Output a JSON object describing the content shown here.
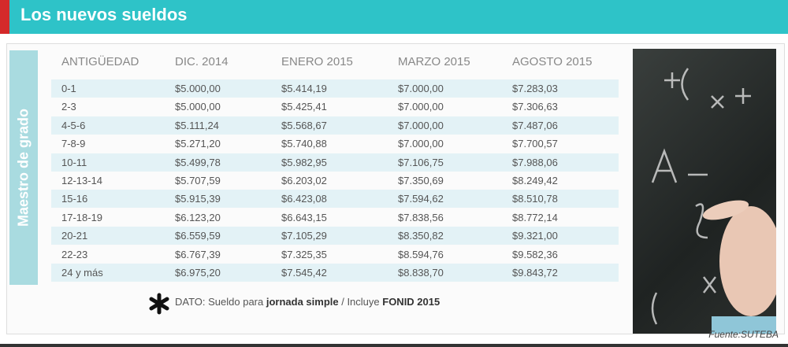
{
  "header": {
    "title": "Los nuevos sueldos"
  },
  "side_label": "Maestro de grado",
  "table": {
    "columns": [
      "ANTIGÜEDAD",
      "DIC. 2014",
      "ENERO 2015",
      "MARZO 2015",
      "AGOSTO 2015"
    ],
    "rows": [
      [
        "0-1",
        "$5.000,00",
        "$5.414,19",
        "$7.000,00",
        "$7.283,03"
      ],
      [
        "2-3",
        "$5.000,00",
        "$5.425,41",
        "$7.000,00",
        "$7.306,63"
      ],
      [
        "4-5-6",
        "$5.111,24",
        "$5.568,67",
        "$7.000,00",
        "$7.487,06"
      ],
      [
        "7-8-9",
        "$5.271,20",
        "$5.740,88",
        "$7.000,00",
        "$7.700,57"
      ],
      [
        "10-11",
        "$5.499,78",
        "$5.982,95",
        "$7.106,75",
        "$7.988,06"
      ],
      [
        "12-13-14",
        "$5.707,59",
        "$6.203,02",
        "$7.350,69",
        "$8.249,42"
      ],
      [
        "15-16",
        "$5.915,39",
        "$6.423,08",
        "$7.594,62",
        "$8.510,78"
      ],
      [
        "17-18-19",
        "$6.123,20",
        "$6.643,15",
        "$7.838,56",
        "$8.772,14"
      ],
      [
        "20-21",
        "$6.559,59",
        "$7.105,29",
        "$8.350,82",
        "$9.321,00"
      ],
      [
        "22-23",
        "$6.767,39",
        "$7.325,35",
        "$8.594,76",
        "$9.582,36"
      ],
      [
        "24 y más",
        "$6.975,20",
        "$7.545,42",
        "$8.838,70",
        "$9.843,72"
      ]
    ]
  },
  "footnote": [
    {
      "text": "DATO: Sueldo para ",
      "bold": false
    },
    {
      "text": "jornada simple",
      "bold": true
    },
    {
      "text": " / Incluye ",
      "bold": false
    },
    {
      "text": "FONID 2015",
      "bold": true
    }
  ],
  "source": "Fuente:SUTEBA"
}
